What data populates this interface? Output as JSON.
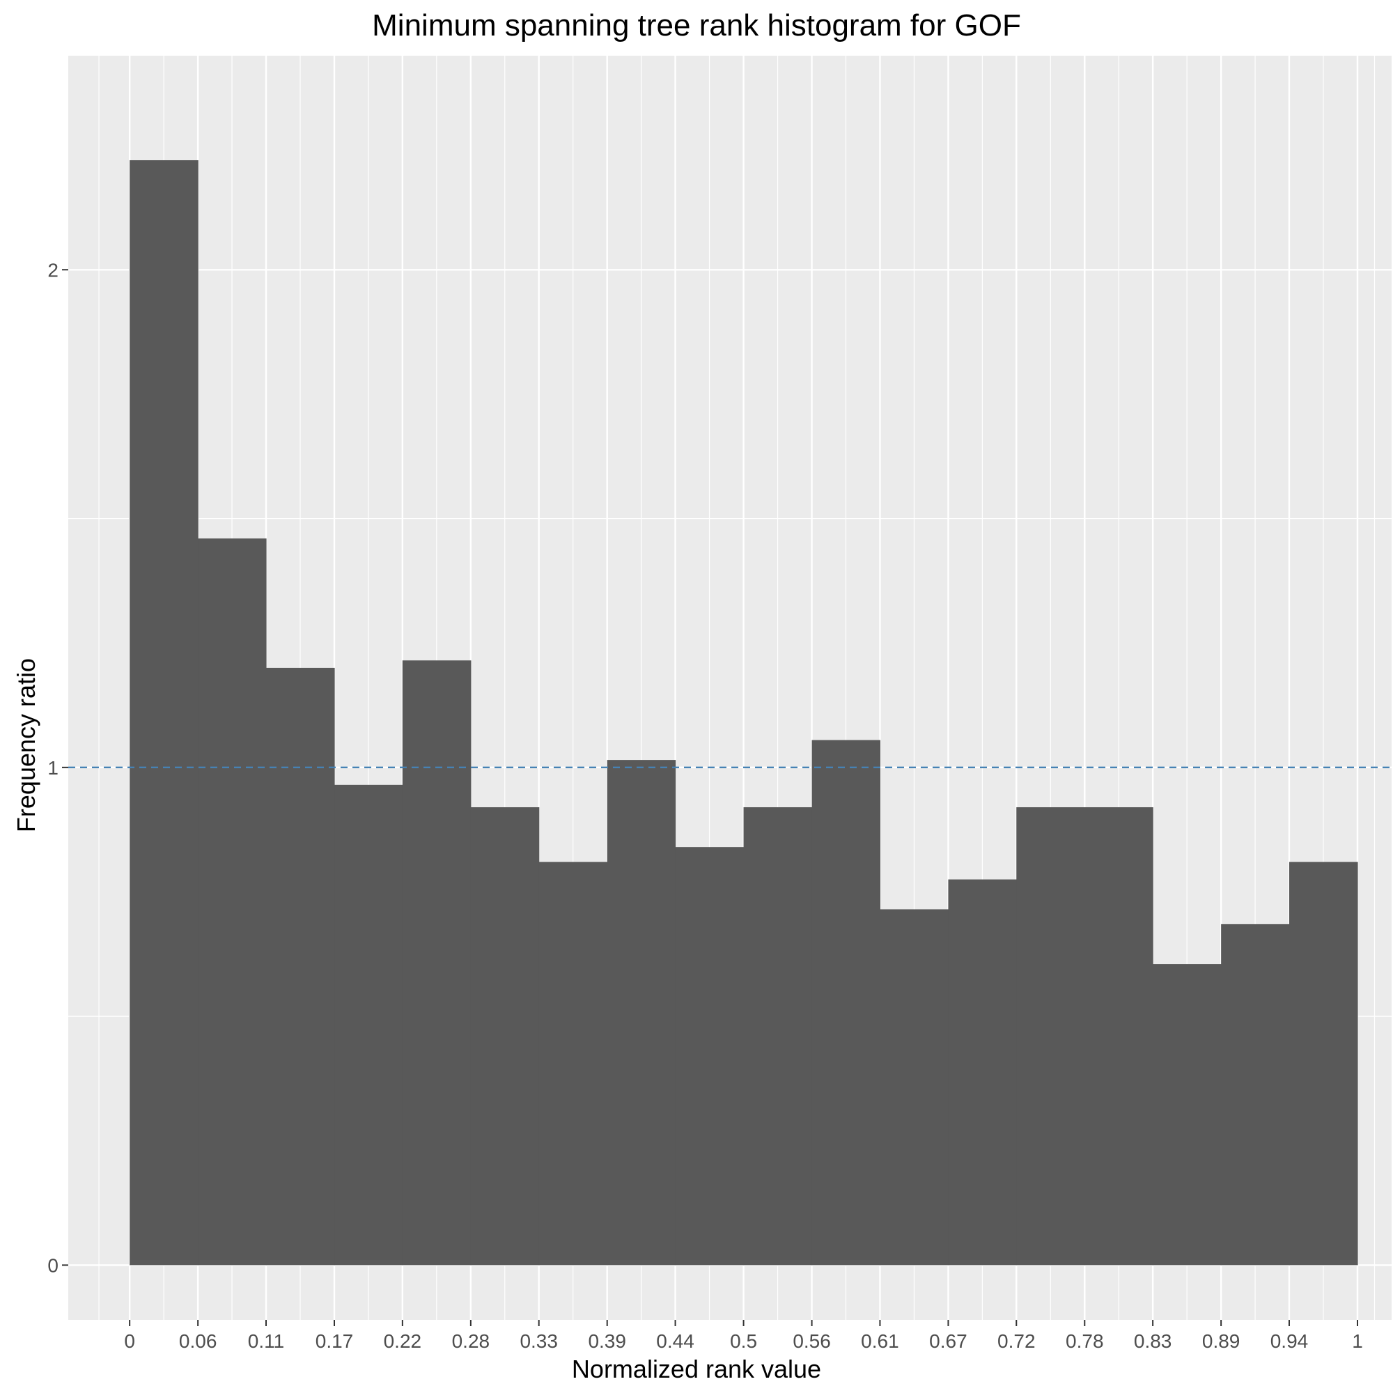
{
  "chart_data": {
    "type": "bar",
    "title": "Minimum spanning tree rank histogram for GOF",
    "xlabel": "Normalized rank value",
    "ylabel": "Frequency ratio",
    "x_ticks": [
      "0",
      "0.06",
      "0.11",
      "0.17",
      "0.22",
      "0.28",
      "0.33",
      "0.39",
      "0.44",
      "0.5",
      "0.56",
      "0.61",
      "0.67",
      "0.72",
      "0.78",
      "0.83",
      "0.89",
      "0.94",
      "1"
    ],
    "y_ticks": [
      "0",
      "1",
      "2"
    ],
    "bin_edges": [
      0,
      0.0556,
      0.1111,
      0.1667,
      0.2222,
      0.2778,
      0.3333,
      0.3889,
      0.4444,
      0.5,
      0.5556,
      0.6111,
      0.6667,
      0.7222,
      0.7778,
      0.8333,
      0.8889,
      0.9444,
      1.0
    ],
    "values": [
      2.22,
      1.46,
      1.2,
      0.965,
      1.215,
      0.92,
      0.81,
      1.015,
      0.84,
      0.92,
      1.055,
      0.715,
      0.775,
      0.92,
      0.92,
      0.605,
      0.685,
      0.81
    ],
    "reference_line": {
      "y": 1,
      "style": "dashed",
      "color": "#4682b4"
    },
    "bar_color": "#595959",
    "panel_color": "#ebebeb",
    "grid_color": "#ffffff",
    "xlim": [
      -0.05,
      1.0278
    ],
    "ylim": [
      -0.11,
      2.43
    ],
    "grid": true
  }
}
